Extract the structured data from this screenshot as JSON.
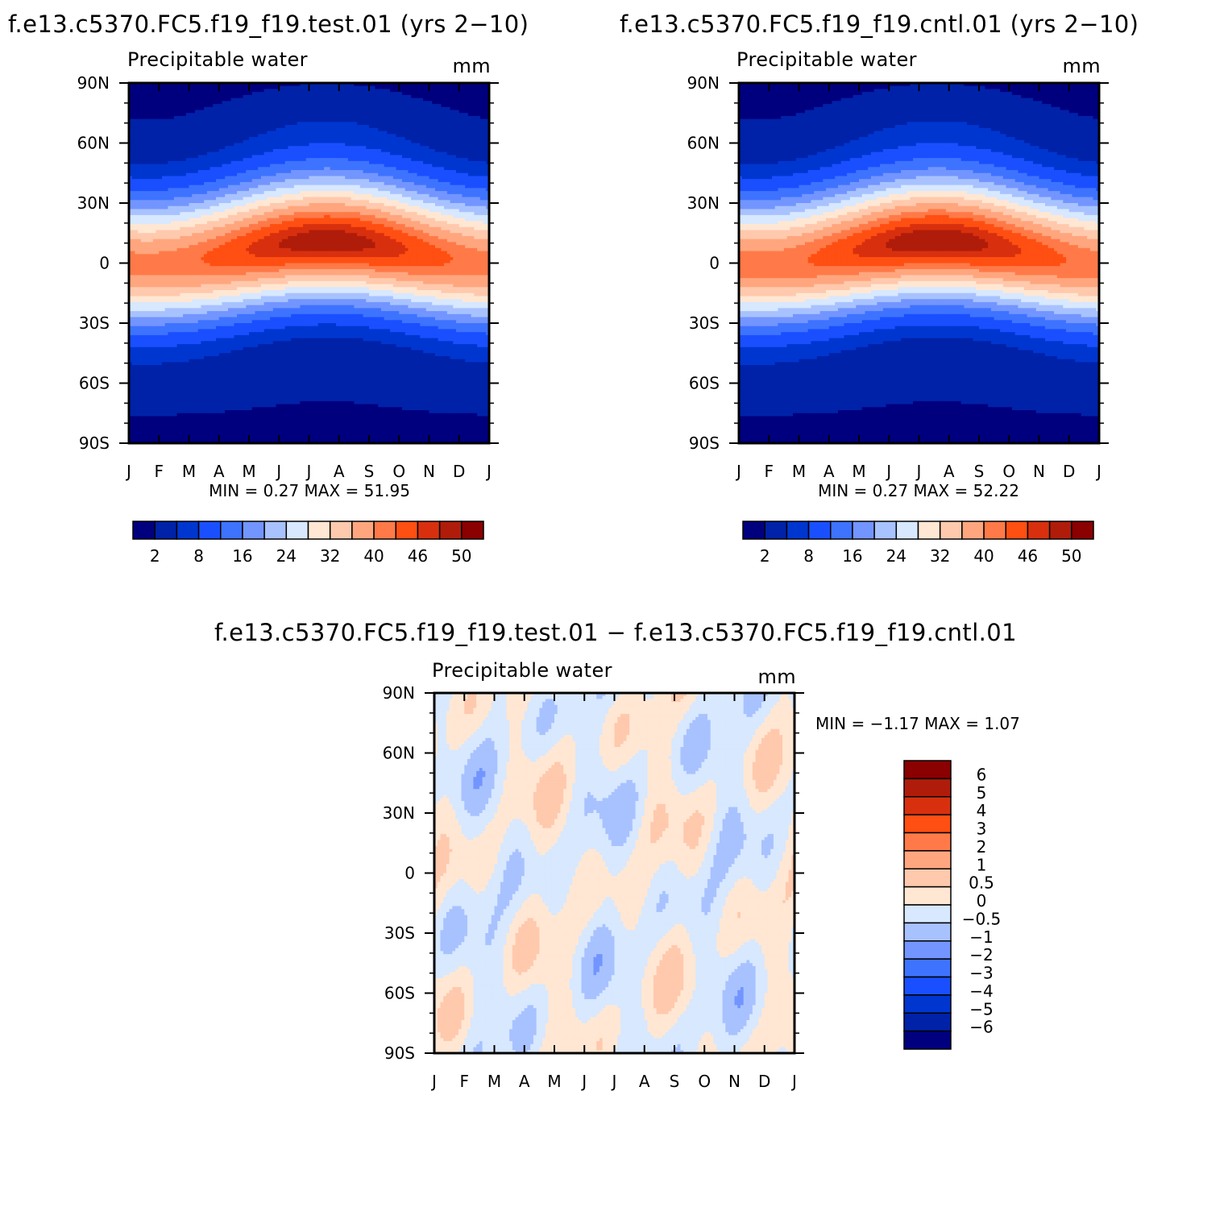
{
  "chart_data": [
    {
      "type": "heatmap",
      "title": "f.e13.c5370.FC5.f19_f19.test.01 (yrs 2−10)",
      "subtitle": "Precipitable water",
      "units": "mm",
      "x_ticks": [
        "J",
        "F",
        "M",
        "A",
        "M",
        "J",
        "J",
        "A",
        "S",
        "O",
        "N",
        "D",
        "J"
      ],
      "y_ticks": [
        "90N",
        "60N",
        "30N",
        "0",
        "30S",
        "60S",
        "90S"
      ],
      "ylim": [
        -90,
        90
      ],
      "stats_text": "MIN =    0.27  MAX =   51.95",
      "min": 0.27,
      "max": 51.95,
      "colorbar": {
        "orientation": "horizontal",
        "labels": [
          "2",
          "8",
          "16",
          "24",
          "32",
          "40",
          "46",
          "50"
        ],
        "colors": [
          "#00007f",
          "#0022a8",
          "#0036d0",
          "#1a4fff",
          "#3e73ff",
          "#7395ff",
          "#a8c2ff",
          "#d7e8ff",
          "#ffe7d3",
          "#ffc9ad",
          "#ffa67f",
          "#ff7a48",
          "#ff4f12",
          "#d8300e",
          "#b01c0a",
          "#8b0000"
        ]
      },
      "zonal_profile_mm": {
        "lat": [
          -90,
          -80,
          -70,
          -60,
          -50,
          -40,
          -30,
          -20,
          -10,
          0,
          10,
          20,
          30,
          40,
          50,
          60,
          70,
          80,
          90
        ],
        "jan": [
          0.5,
          2,
          5,
          8,
          12,
          17,
          24,
          34,
          44,
          46,
          40,
          28,
          18,
          12,
          8,
          5,
          3,
          2,
          1
        ],
        "jul": [
          0.3,
          1,
          3,
          6,
          9,
          13,
          18,
          26,
          36,
          44,
          50,
          44,
          34,
          24,
          17,
          11,
          7,
          5,
          4
        ]
      }
    },
    {
      "type": "heatmap",
      "title": "f.e13.c5370.FC5.f19_f19.cntl.01 (yrs 2−10)",
      "subtitle": "Precipitable water",
      "units": "mm",
      "x_ticks": [
        "J",
        "F",
        "M",
        "A",
        "M",
        "J",
        "J",
        "A",
        "S",
        "O",
        "N",
        "D",
        "J"
      ],
      "y_ticks": [
        "90N",
        "60N",
        "30N",
        "0",
        "30S",
        "60S",
        "90S"
      ],
      "ylim": [
        -90,
        90
      ],
      "stats_text": "MIN =    0.27  MAX =   52.22",
      "min": 0.27,
      "max": 52.22,
      "colorbar": {
        "orientation": "horizontal",
        "labels": [
          "2",
          "8",
          "16",
          "24",
          "32",
          "40",
          "46",
          "50"
        ],
        "colors": [
          "#00007f",
          "#0022a8",
          "#0036d0",
          "#1a4fff",
          "#3e73ff",
          "#7395ff",
          "#a8c2ff",
          "#d7e8ff",
          "#ffe7d3",
          "#ffc9ad",
          "#ffa67f",
          "#ff7a48",
          "#ff4f12",
          "#d8300e",
          "#b01c0a",
          "#8b0000"
        ]
      }
    },
    {
      "type": "heatmap",
      "title": "f.e13.c5370.FC5.f19_f19.test.01 − f.e13.c5370.FC5.f19_f19.cntl.01",
      "subtitle": "Precipitable water",
      "units": "mm",
      "x_ticks": [
        "J",
        "F",
        "M",
        "A",
        "M",
        "J",
        "J",
        "A",
        "S",
        "O",
        "N",
        "D",
        "J"
      ],
      "y_ticks": [
        "90N",
        "60N",
        "30N",
        "0",
        "30S",
        "60S",
        "90S"
      ],
      "ylim": [
        -90,
        90
      ],
      "stats_text": "MIN =   −1.17  MAX =     1.07",
      "min": -1.17,
      "max": 1.07,
      "colorbar": {
        "orientation": "vertical",
        "labels": [
          "6",
          "5",
          "4",
          "3",
          "2",
          "1",
          "0.5",
          "0",
          "−0.5",
          "−1",
          "−2",
          "−3",
          "−4",
          "−5",
          "−6"
        ],
        "colors": [
          "#8b0000",
          "#b01c0a",
          "#d8300e",
          "#ff4f12",
          "#ff7a48",
          "#ffa67f",
          "#ffc9ad",
          "#ffe7d3",
          "#d7e8ff",
          "#a8c2ff",
          "#7395ff",
          "#3e73ff",
          "#1a4fff",
          "#0036d0",
          "#0022a8",
          "#00007f"
        ]
      }
    }
  ]
}
